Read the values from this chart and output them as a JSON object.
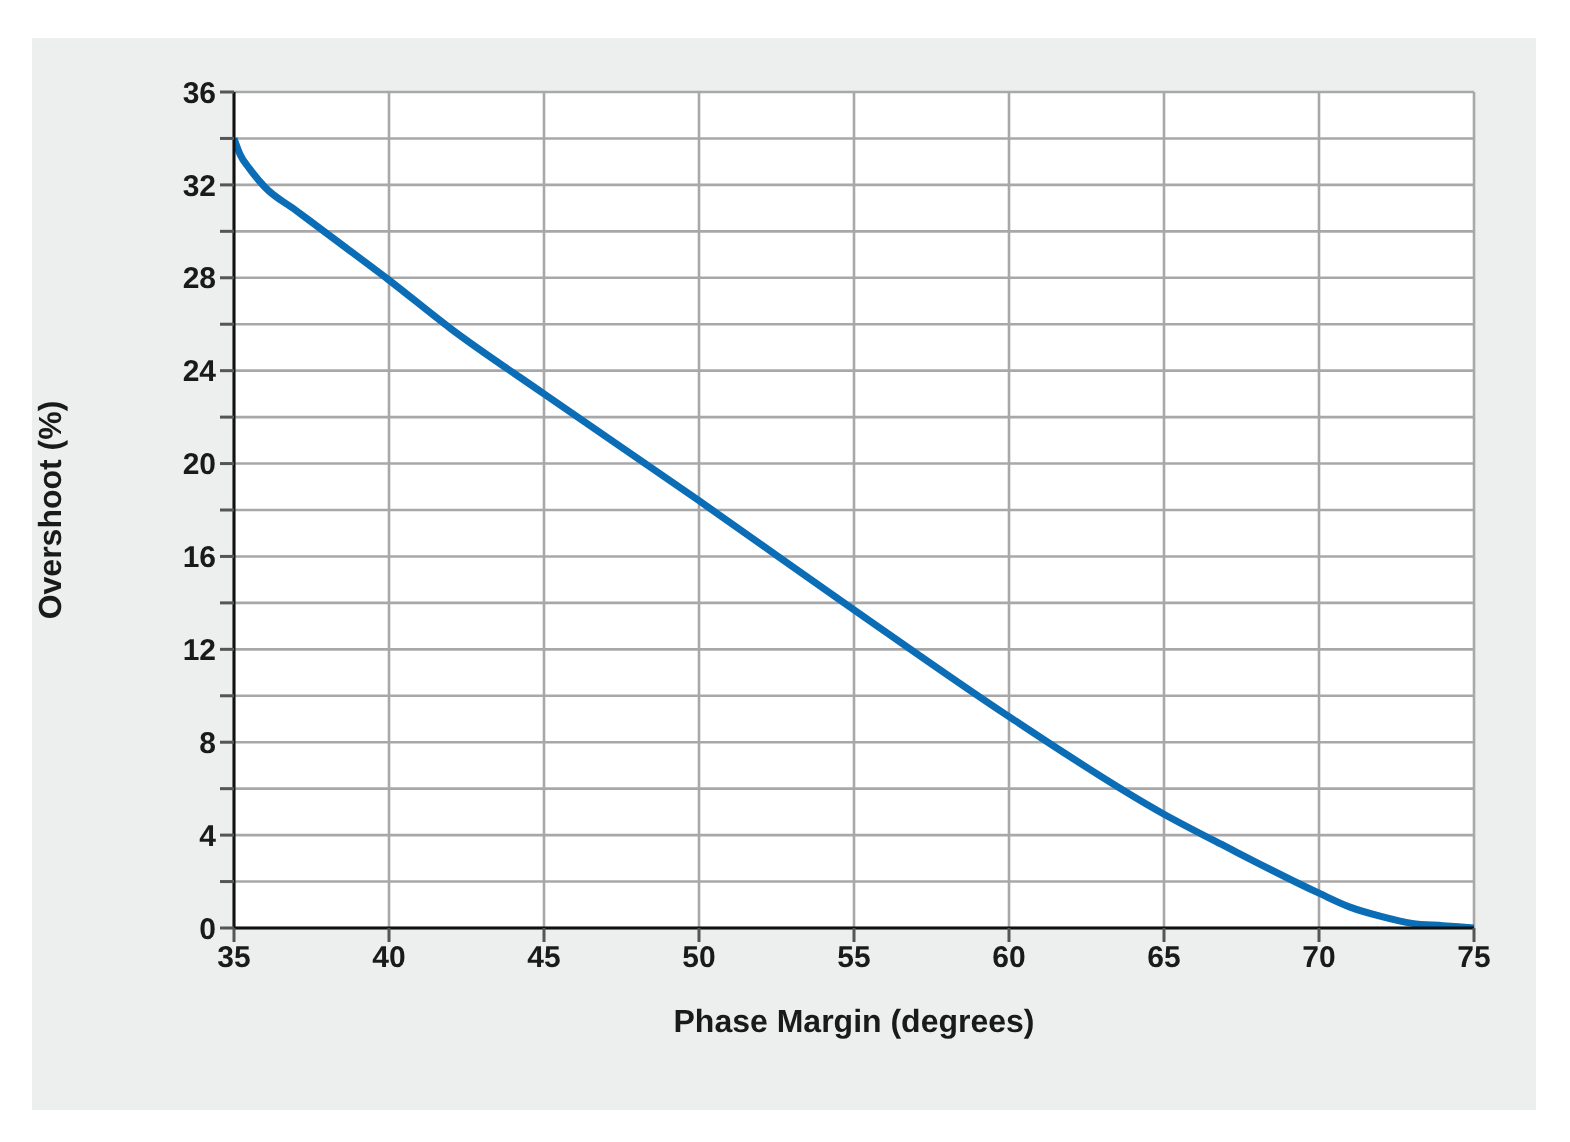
{
  "chart_data": {
    "type": "line",
    "xlabel": "Phase Margin (degrees)",
    "ylabel": "Overshoot (%)",
    "x": [
      35,
      35.2,
      35.5,
      36,
      37,
      38,
      40,
      42,
      45,
      50,
      55,
      60,
      65,
      67,
      70,
      71,
      72,
      73,
      74,
      75
    ],
    "series": [
      {
        "color": "#0b6db5",
        "values": [
          34,
          33.3,
          32.7,
          31.9,
          30.9,
          29.9,
          27.9,
          25.8,
          23,
          18.4,
          13.7,
          9.1,
          4.9,
          3.5,
          1.5,
          0.9,
          0.5,
          0.2,
          0.1,
          0
        ]
      }
    ],
    "xlim": [
      35,
      75
    ],
    "xticks": [
      35,
      40,
      45,
      50,
      55,
      60,
      65,
      70,
      75
    ],
    "ylim": [
      0,
      36
    ],
    "yticks": [
      0,
      {
        "value": 2,
        "label": null
      },
      4,
      {
        "value": 6,
        "label": null
      },
      8,
      {
        "value": 10,
        "label": null
      },
      12,
      {
        "value": 14,
        "label": null
      },
      16,
      {
        "value": 18,
        "label": null
      },
      20,
      {
        "value": 22,
        "label": null
      },
      24,
      {
        "value": 26,
        "label": null
      },
      28,
      {
        "value": 30,
        "label": null
      },
      32,
      {
        "value": 34,
        "label": null
      },
      36
    ],
    "grid": true,
    "marker": "none",
    "line_style": "solid",
    "legend": false
  }
}
